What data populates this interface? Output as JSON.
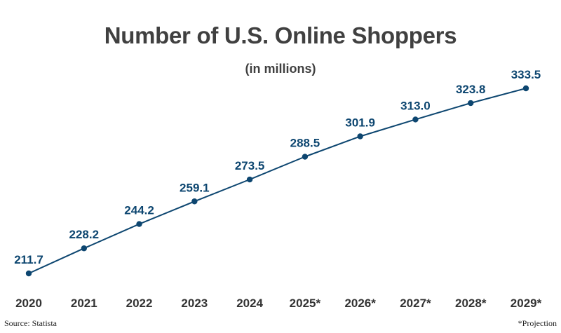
{
  "title": "Number of U.S. Online Shoppers",
  "subtitle": "(in millions)",
  "source": "Source: Statista",
  "note": "*Projection",
  "colors": {
    "line": "#0d4670",
    "label": "#0d4670",
    "axis": "#333333",
    "title": "#404040"
  },
  "chart_data": {
    "type": "line",
    "title": "Number of U.S. Online Shoppers",
    "subtitle": "(in millions)",
    "categories": [
      "2020",
      "2021",
      "2022",
      "2023",
      "2024",
      "2025*",
      "2026*",
      "2027*",
      "2028*",
      "2029*"
    ],
    "series": [
      {
        "values": [
          211.7,
          228.2,
          244.2,
          259.1,
          273.5,
          288.5,
          301.9,
          313.0,
          323.8,
          333.5
        ]
      }
    ],
    "data_labels": [
      "211.7",
      "228.2",
      "244.2",
      "259.1",
      "273.5",
      "288.5",
      "301.9",
      "313.0",
      "323.8",
      "333.5"
    ],
    "xlabel": "",
    "ylabel": "",
    "grid": false,
    "legend": "none"
  }
}
